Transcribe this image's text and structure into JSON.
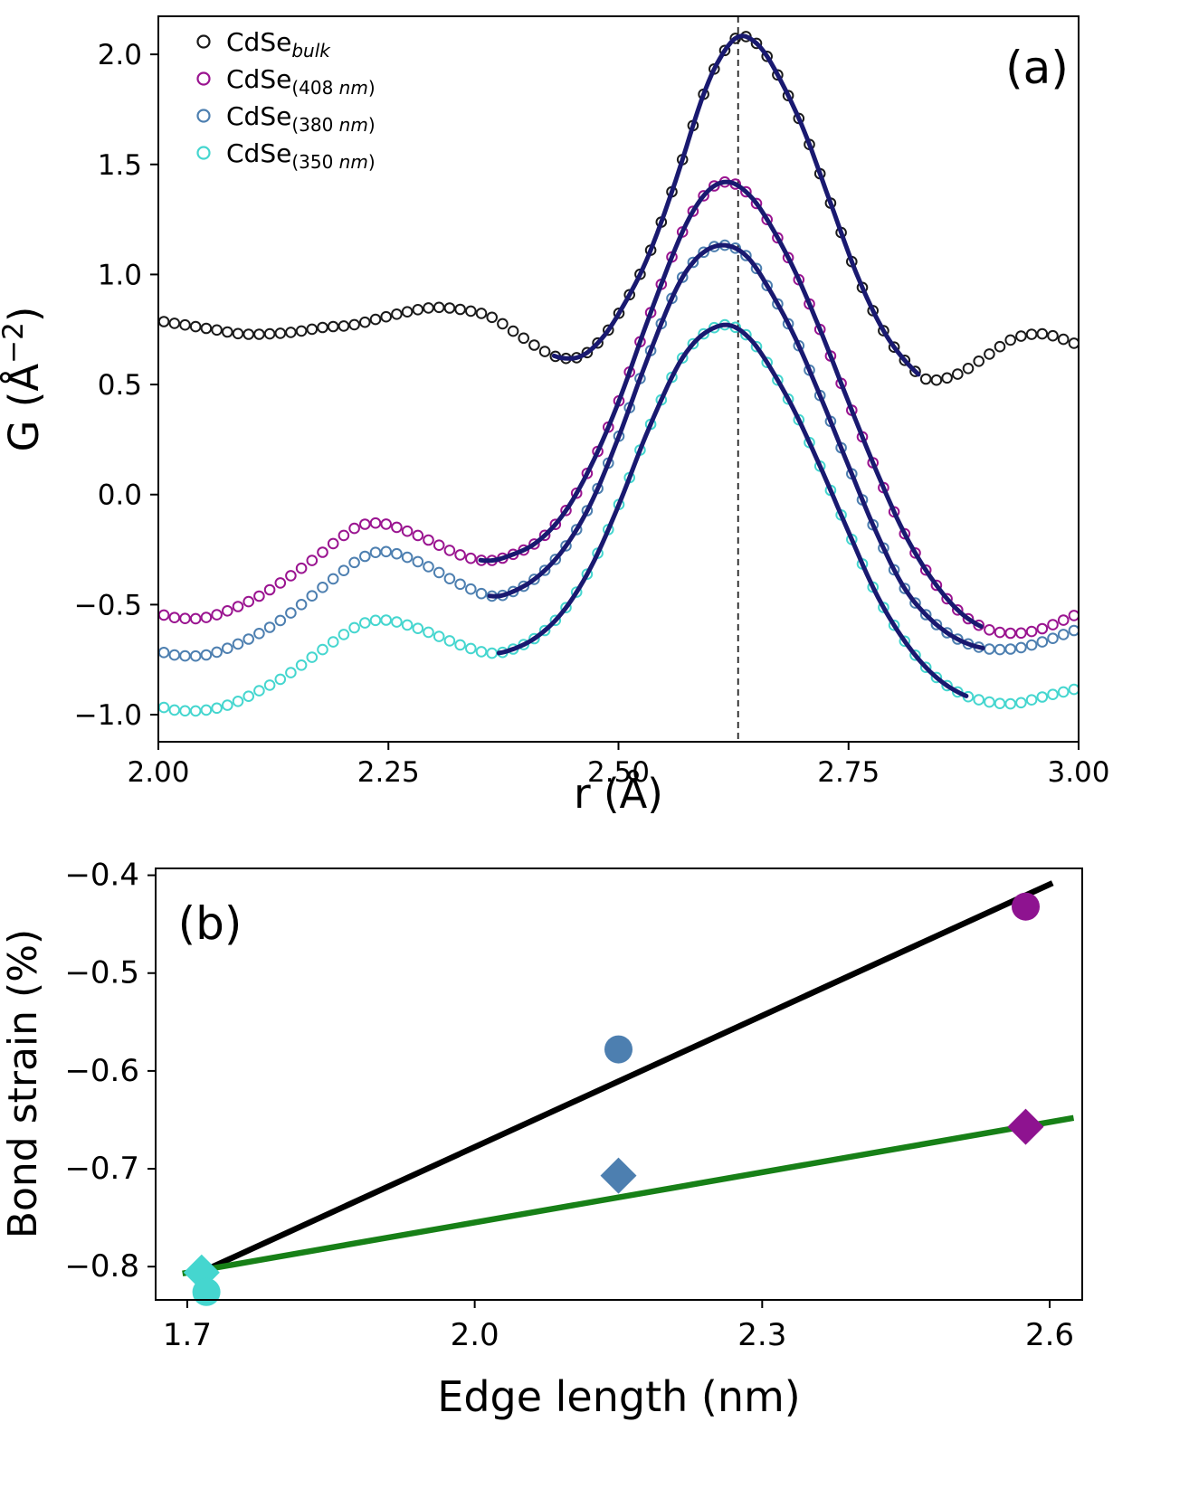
{
  "figure": {
    "description_visible_text": [
      "(a)",
      "(b)"
    ],
    "panel_a_label": "(a)",
    "panel_b_label": "(b)"
  },
  "chart_data": [
    {
      "id": "panel-a",
      "type": "scatter",
      "panel_label": "(a)",
      "xlabel": "r (Å)",
      "ylabel": "G (Å⁻²)",
      "ylabel_parts": {
        "pre": "G (Å",
        "sup": "−2",
        "post": ")"
      },
      "xlim": [
        2.0,
        3.0
      ],
      "ylim": [
        -1.123,
        2.173
      ],
      "xticks": [
        "2.00",
        "2.25",
        "2.50",
        "2.75",
        "3.00"
      ],
      "xtick_values": [
        2.0,
        2.25,
        2.5,
        2.75,
        3.0
      ],
      "yticks": [
        "2.0",
        "1.5",
        "1.0",
        "0.5",
        "0.0",
        "−0.5",
        "−1.0"
      ],
      "ytick_values": [
        2.0,
        1.5,
        1.0,
        0.5,
        0.0,
        -0.5,
        -1.0
      ],
      "vline_x": 2.63,
      "fit_color": "#191970",
      "marker_step": 0.0115,
      "legend_position": "upper left",
      "series": [
        {
          "name": "CdSe_bulk",
          "legend": {
            "main": "CdSe",
            "sub": [
              {
                "t": "bulk",
                "i": true
              }
            ]
          },
          "color": "#1a1a1a",
          "fit_range": [
            2.43,
            2.83
          ],
          "points": [
            [
              2.0,
              0.79
            ],
            [
              2.03,
              0.77
            ],
            [
              2.06,
              0.75
            ],
            [
              2.09,
              0.73
            ],
            [
              2.12,
              0.73
            ],
            [
              2.15,
              0.74
            ],
            [
              2.18,
              0.76
            ],
            [
              2.21,
              0.77
            ],
            [
              2.24,
              0.8
            ],
            [
              2.27,
              0.83
            ],
            [
              2.3,
              0.85
            ],
            [
              2.33,
              0.84
            ],
            [
              2.36,
              0.81
            ],
            [
              2.39,
              0.73
            ],
            [
              2.42,
              0.65
            ],
            [
              2.44,
              0.62
            ],
            [
              2.46,
              0.63
            ],
            [
              2.48,
              0.7
            ],
            [
              2.5,
              0.82
            ],
            [
              2.53,
              1.06
            ],
            [
              2.56,
              1.4
            ],
            [
              2.59,
              1.79
            ],
            [
              2.61,
              1.98
            ],
            [
              2.63,
              2.08
            ],
            [
              2.65,
              2.05
            ],
            [
              2.67,
              1.93
            ],
            [
              2.7,
              1.67
            ],
            [
              2.73,
              1.33
            ],
            [
              2.76,
              0.99
            ],
            [
              2.79,
              0.73
            ],
            [
              2.82,
              0.57
            ],
            [
              2.84,
              0.52
            ],
            [
              2.87,
              0.55
            ],
            [
              2.9,
              0.63
            ],
            [
              2.93,
              0.71
            ],
            [
              2.96,
              0.73
            ],
            [
              2.98,
              0.71
            ],
            [
              3.0,
              0.68
            ]
          ]
        },
        {
          "name": "CdSe_408nm",
          "legend": {
            "main": "CdSe",
            "sub": [
              {
                "t": "(408 ",
                "i": false
              },
              {
                "t": "nm",
                "i": true
              },
              {
                "t": ")",
                "i": false
              }
            ]
          },
          "color": "#9a1490",
          "fit_range": [
            2.35,
            2.895
          ],
          "points": [
            [
              2.0,
              -0.54
            ],
            [
              2.02,
              -0.56
            ],
            [
              2.05,
              -0.56
            ],
            [
              2.08,
              -0.52
            ],
            [
              2.11,
              -0.46
            ],
            [
              2.14,
              -0.38
            ],
            [
              2.17,
              -0.29
            ],
            [
              2.2,
              -0.19
            ],
            [
              2.22,
              -0.14
            ],
            [
              2.24,
              -0.13
            ],
            [
              2.26,
              -0.15
            ],
            [
              2.29,
              -0.2
            ],
            [
              2.32,
              -0.26
            ],
            [
              2.34,
              -0.29
            ],
            [
              2.36,
              -0.3
            ],
            [
              2.38,
              -0.28
            ],
            [
              2.41,
              -0.22
            ],
            [
              2.44,
              -0.09
            ],
            [
              2.47,
              0.13
            ],
            [
              2.5,
              0.42
            ],
            [
              2.53,
              0.77
            ],
            [
              2.56,
              1.1
            ],
            [
              2.58,
              1.28
            ],
            [
              2.6,
              1.39
            ],
            [
              2.62,
              1.42
            ],
            [
              2.64,
              1.37
            ],
            [
              2.66,
              1.26
            ],
            [
              2.69,
              1.03
            ],
            [
              2.72,
              0.74
            ],
            [
              2.75,
              0.42
            ],
            [
              2.78,
              0.11
            ],
            [
              2.81,
              -0.17
            ],
            [
              2.84,
              -0.38
            ],
            [
              2.87,
              -0.53
            ],
            [
              2.9,
              -0.61
            ],
            [
              2.93,
              -0.63
            ],
            [
              2.96,
              -0.61
            ],
            [
              3.0,
              -0.54
            ]
          ]
        },
        {
          "name": "CdSe_380nm",
          "legend": {
            "main": "CdSe",
            "sub": [
              {
                "t": "(380 ",
                "i": false
              },
              {
                "t": "nm",
                "i": true
              },
              {
                "t": ")",
                "i": false
              }
            ]
          },
          "color": "#4d7fb0",
          "fit_range": [
            2.36,
            2.9
          ],
          "points": [
            [
              2.0,
              -0.71
            ],
            [
              2.02,
              -0.73
            ],
            [
              2.05,
              -0.73
            ],
            [
              2.08,
              -0.69
            ],
            [
              2.11,
              -0.63
            ],
            [
              2.14,
              -0.55
            ],
            [
              2.17,
              -0.45
            ],
            [
              2.2,
              -0.35
            ],
            [
              2.22,
              -0.29
            ],
            [
              2.24,
              -0.26
            ],
            [
              2.26,
              -0.27
            ],
            [
              2.29,
              -0.32
            ],
            [
              2.32,
              -0.39
            ],
            [
              2.34,
              -0.43
            ],
            [
              2.36,
              -0.46
            ],
            [
              2.38,
              -0.45
            ],
            [
              2.41,
              -0.38
            ],
            [
              2.44,
              -0.25
            ],
            [
              2.47,
              -0.04
            ],
            [
              2.5,
              0.26
            ],
            [
              2.53,
              0.6
            ],
            [
              2.56,
              0.91
            ],
            [
              2.58,
              1.05
            ],
            [
              2.6,
              1.12
            ],
            [
              2.62,
              1.13
            ],
            [
              2.64,
              1.08
            ],
            [
              2.66,
              0.96
            ],
            [
              2.69,
              0.73
            ],
            [
              2.72,
              0.44
            ],
            [
              2.75,
              0.13
            ],
            [
              2.78,
              -0.17
            ],
            [
              2.81,
              -0.42
            ],
            [
              2.84,
              -0.57
            ],
            [
              2.87,
              -0.66
            ],
            [
              2.9,
              -0.7
            ],
            [
              2.93,
              -0.7
            ],
            [
              2.96,
              -0.67
            ],
            [
              3.0,
              -0.61
            ]
          ]
        },
        {
          "name": "CdSe_350nm",
          "legend": {
            "main": "CdSe",
            "sub": [
              {
                "t": "(350 ",
                "i": false
              },
              {
                "t": "nm",
                "i": true
              },
              {
                "t": ")",
                "i": false
              }
            ]
          },
          "color": "#45d6cf",
          "fit_range": [
            2.37,
            2.88
          ],
          "points": [
            [
              2.0,
              -0.96
            ],
            [
              2.02,
              -0.98
            ],
            [
              2.05,
              -0.98
            ],
            [
              2.08,
              -0.95
            ],
            [
              2.11,
              -0.89
            ],
            [
              2.14,
              -0.82
            ],
            [
              2.17,
              -0.73
            ],
            [
              2.2,
              -0.64
            ],
            [
              2.22,
              -0.59
            ],
            [
              2.24,
              -0.57
            ],
            [
              2.26,
              -0.58
            ],
            [
              2.29,
              -0.62
            ],
            [
              2.32,
              -0.67
            ],
            [
              2.34,
              -0.7
            ],
            [
              2.36,
              -0.72
            ],
            [
              2.38,
              -0.71
            ],
            [
              2.41,
              -0.65
            ],
            [
              2.44,
              -0.53
            ],
            [
              2.47,
              -0.33
            ],
            [
              2.5,
              -0.05
            ],
            [
              2.53,
              0.27
            ],
            [
              2.56,
              0.55
            ],
            [
              2.58,
              0.68
            ],
            [
              2.6,
              0.75
            ],
            [
              2.62,
              0.77
            ],
            [
              2.64,
              0.72
            ],
            [
              2.66,
              0.61
            ],
            [
              2.69,
              0.39
            ],
            [
              2.72,
              0.12
            ],
            [
              2.75,
              -0.17
            ],
            [
              2.78,
              -0.45
            ],
            [
              2.81,
              -0.66
            ],
            [
              2.84,
              -0.81
            ],
            [
              2.87,
              -0.9
            ],
            [
              2.9,
              -0.94
            ],
            [
              2.93,
              -0.95
            ],
            [
              2.96,
              -0.92
            ],
            [
              3.0,
              -0.88
            ]
          ]
        }
      ]
    },
    {
      "id": "panel-b",
      "type": "scatter",
      "panel_label": "(b)",
      "xlabel": "Edge length (nm)",
      "ylabel": "Bond strain (%)",
      "xlim": [
        1.667,
        2.634
      ],
      "ylim": [
        -0.834,
        -0.393
      ],
      "xticks": [
        "1.7",
        "2.0",
        "2.3",
        "2.6"
      ],
      "xtick_values": [
        1.7,
        2.0,
        2.3,
        2.6
      ],
      "yticks": [
        "−0.4",
        "−0.5",
        "−0.6",
        "−0.7",
        "−0.8"
      ],
      "ytick_values": [
        -0.4,
        -0.5,
        -0.6,
        -0.7,
        -0.8
      ],
      "lines": [
        {
          "name": "fit-line-circles",
          "color": "#000000",
          "x": [
            1.72,
            2.603
          ],
          "y": [
            -0.803,
            -0.408
          ]
        },
        {
          "name": "fit-line-diamonds",
          "color": "#178017",
          "x": [
            1.695,
            2.625
          ],
          "y": [
            -0.807,
            -0.648
          ]
        }
      ],
      "marker_series": [
        {
          "name": "diamond-series",
          "marker": "diamond",
          "size": 20,
          "points": [
            {
              "x": 1.715,
              "y": -0.806,
              "color": "#45d6cf"
            },
            {
              "x": 2.15,
              "y": -0.707,
              "color": "#4d7fb0"
            },
            {
              "x": 2.575,
              "y": -0.657,
              "color": "#8e1390"
            }
          ]
        },
        {
          "name": "circle-series",
          "marker": "circle",
          "size": 15.5,
          "points": [
            {
              "x": 1.72,
              "y": -0.826,
              "color": "#45d6cf"
            },
            {
              "x": 2.15,
              "y": -0.578,
              "color": "#4d7fb0"
            },
            {
              "x": 2.575,
              "y": -0.432,
              "color": "#8e1390"
            }
          ]
        }
      ]
    }
  ]
}
